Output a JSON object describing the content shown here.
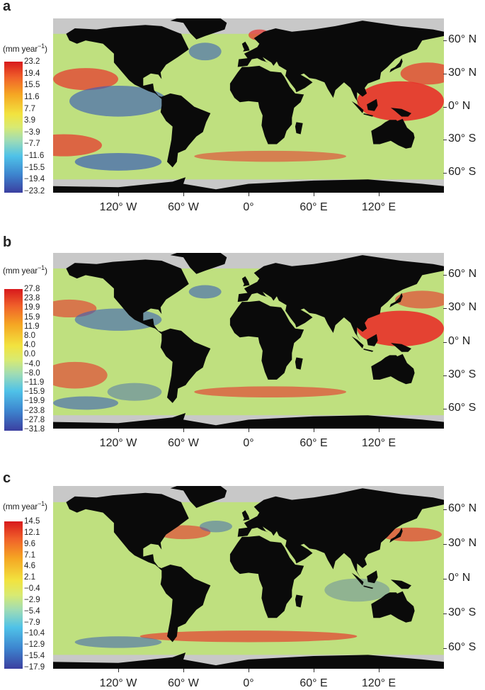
{
  "panels": [
    {
      "letter": "a",
      "unit_main": "(mm year",
      "unit_exp": "−1",
      "unit_close": ")",
      "colorbar_ticks": [
        "23.2",
        "19.4",
        "15.5",
        "11.6",
        "7.7",
        "3.9",
        "−3.9",
        "−7.7",
        "−11.6",
        "−15.5",
        "−19.4",
        "−23.2"
      ]
    },
    {
      "letter": "b",
      "unit_main": "(mm year",
      "unit_exp": "−1",
      "unit_close": ")",
      "colorbar_ticks": [
        "27.8",
        "23.8",
        "19.9",
        "15.9",
        "11.9",
        "8.0",
        "4.0",
        "0.0",
        "−4.0",
        "−8.0",
        "−11.9",
        "−15.9",
        "−19.9",
        "−23.8",
        "−27.8",
        "−31.8"
      ]
    },
    {
      "letter": "c",
      "unit_main": "(mm year",
      "unit_exp": "−1",
      "unit_close": ")",
      "colorbar_ticks": [
        "14.5",
        "12.1",
        "9.6",
        "7.1",
        "4.6",
        "2.1",
        "−0.4",
        "−2.9",
        "−5.4",
        "−7.9",
        "−10.4",
        "−12.9",
        "−15.4",
        "−17.9"
      ]
    }
  ],
  "axes": {
    "latitude_labels": [
      "60° N",
      "30° N",
      "0° N",
      "30° S",
      "60° S"
    ],
    "longitude_labels": [
      "120° W",
      "60° W",
      "0°",
      "60° E",
      "120° E"
    ]
  },
  "colors": {
    "land": "#0a0a0a",
    "no_data": "#c8c8c8",
    "ocean_mid": "#e2e66a",
    "positive": "#e8312a",
    "negative": "#3a5fb5"
  }
}
